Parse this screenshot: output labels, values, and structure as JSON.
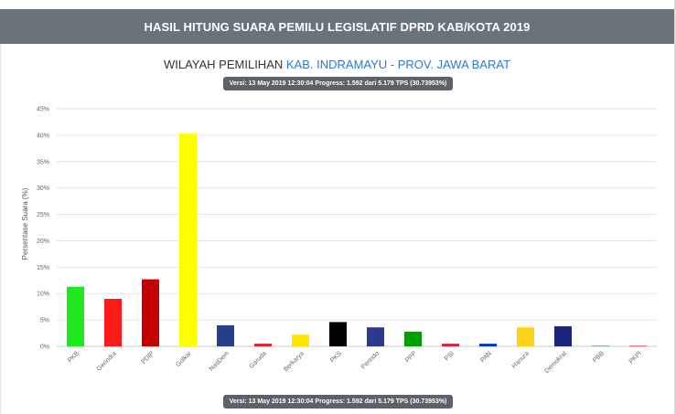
{
  "page": {
    "header_title": "HASIL HITUNG SUARA PEMILU LEGISLATIF DPRD KAB/KOTA 2019",
    "subtitle_prefix": "WILAYAH PEMILIHAN",
    "subtitle_region": "KAB. INDRAMAYU - PROV. JAWA BARAT",
    "version_badge_top": "Versi: 13 May 2019 12:30:04 Progress: 1.592 dari 5.179 TPS (30.73953%)",
    "version_badge_bottom": "Versi: 13 May 2019 12:30:04 Progress: 1.592 dari 5.179 TPS (30.73953%)"
  },
  "chart_data": {
    "type": "bar",
    "title": "",
    "xlabel": "",
    "ylabel": "Persentase Suara (%)",
    "ylim": [
      0,
      45
    ],
    "yticks": [
      0,
      5,
      10,
      15,
      20,
      25,
      30,
      35,
      40,
      45
    ],
    "ytick_labels": [
      "0%",
      "5%",
      "10%",
      "15%",
      "20%",
      "25%",
      "30%",
      "35%",
      "40%",
      "45%"
    ],
    "grid": true,
    "categories": [
      "PKB",
      "Gerindra",
      "PDIP",
      "Golkar",
      "NasDem",
      "Garuda",
      "Berkarya",
      "PKS",
      "Perindo",
      "PPP",
      "PSI",
      "PAN",
      "Hanura",
      "Demokrat",
      "PBB",
      "PKPI"
    ],
    "values": [
      11.3,
      9.0,
      12.7,
      40.3,
      4.0,
      0.5,
      2.2,
      4.6,
      3.6,
      2.8,
      0.5,
      0.5,
      3.6,
      3.8,
      0.1,
      0.1
    ],
    "colors": [
      "#1ee81e",
      "#ff1a1a",
      "#c40000",
      "#ffff00",
      "#27408b",
      "#e62020",
      "#ffe500",
      "#000000",
      "#2b3a8e",
      "#00a000",
      "#e8193c",
      "#0033cc",
      "#ffd21a",
      "#1a237e",
      "#2c7a4b",
      "#d8001a"
    ],
    "colors_meta": {
      "grid": "#e6e6e6",
      "axis_text": "#666666"
    }
  }
}
